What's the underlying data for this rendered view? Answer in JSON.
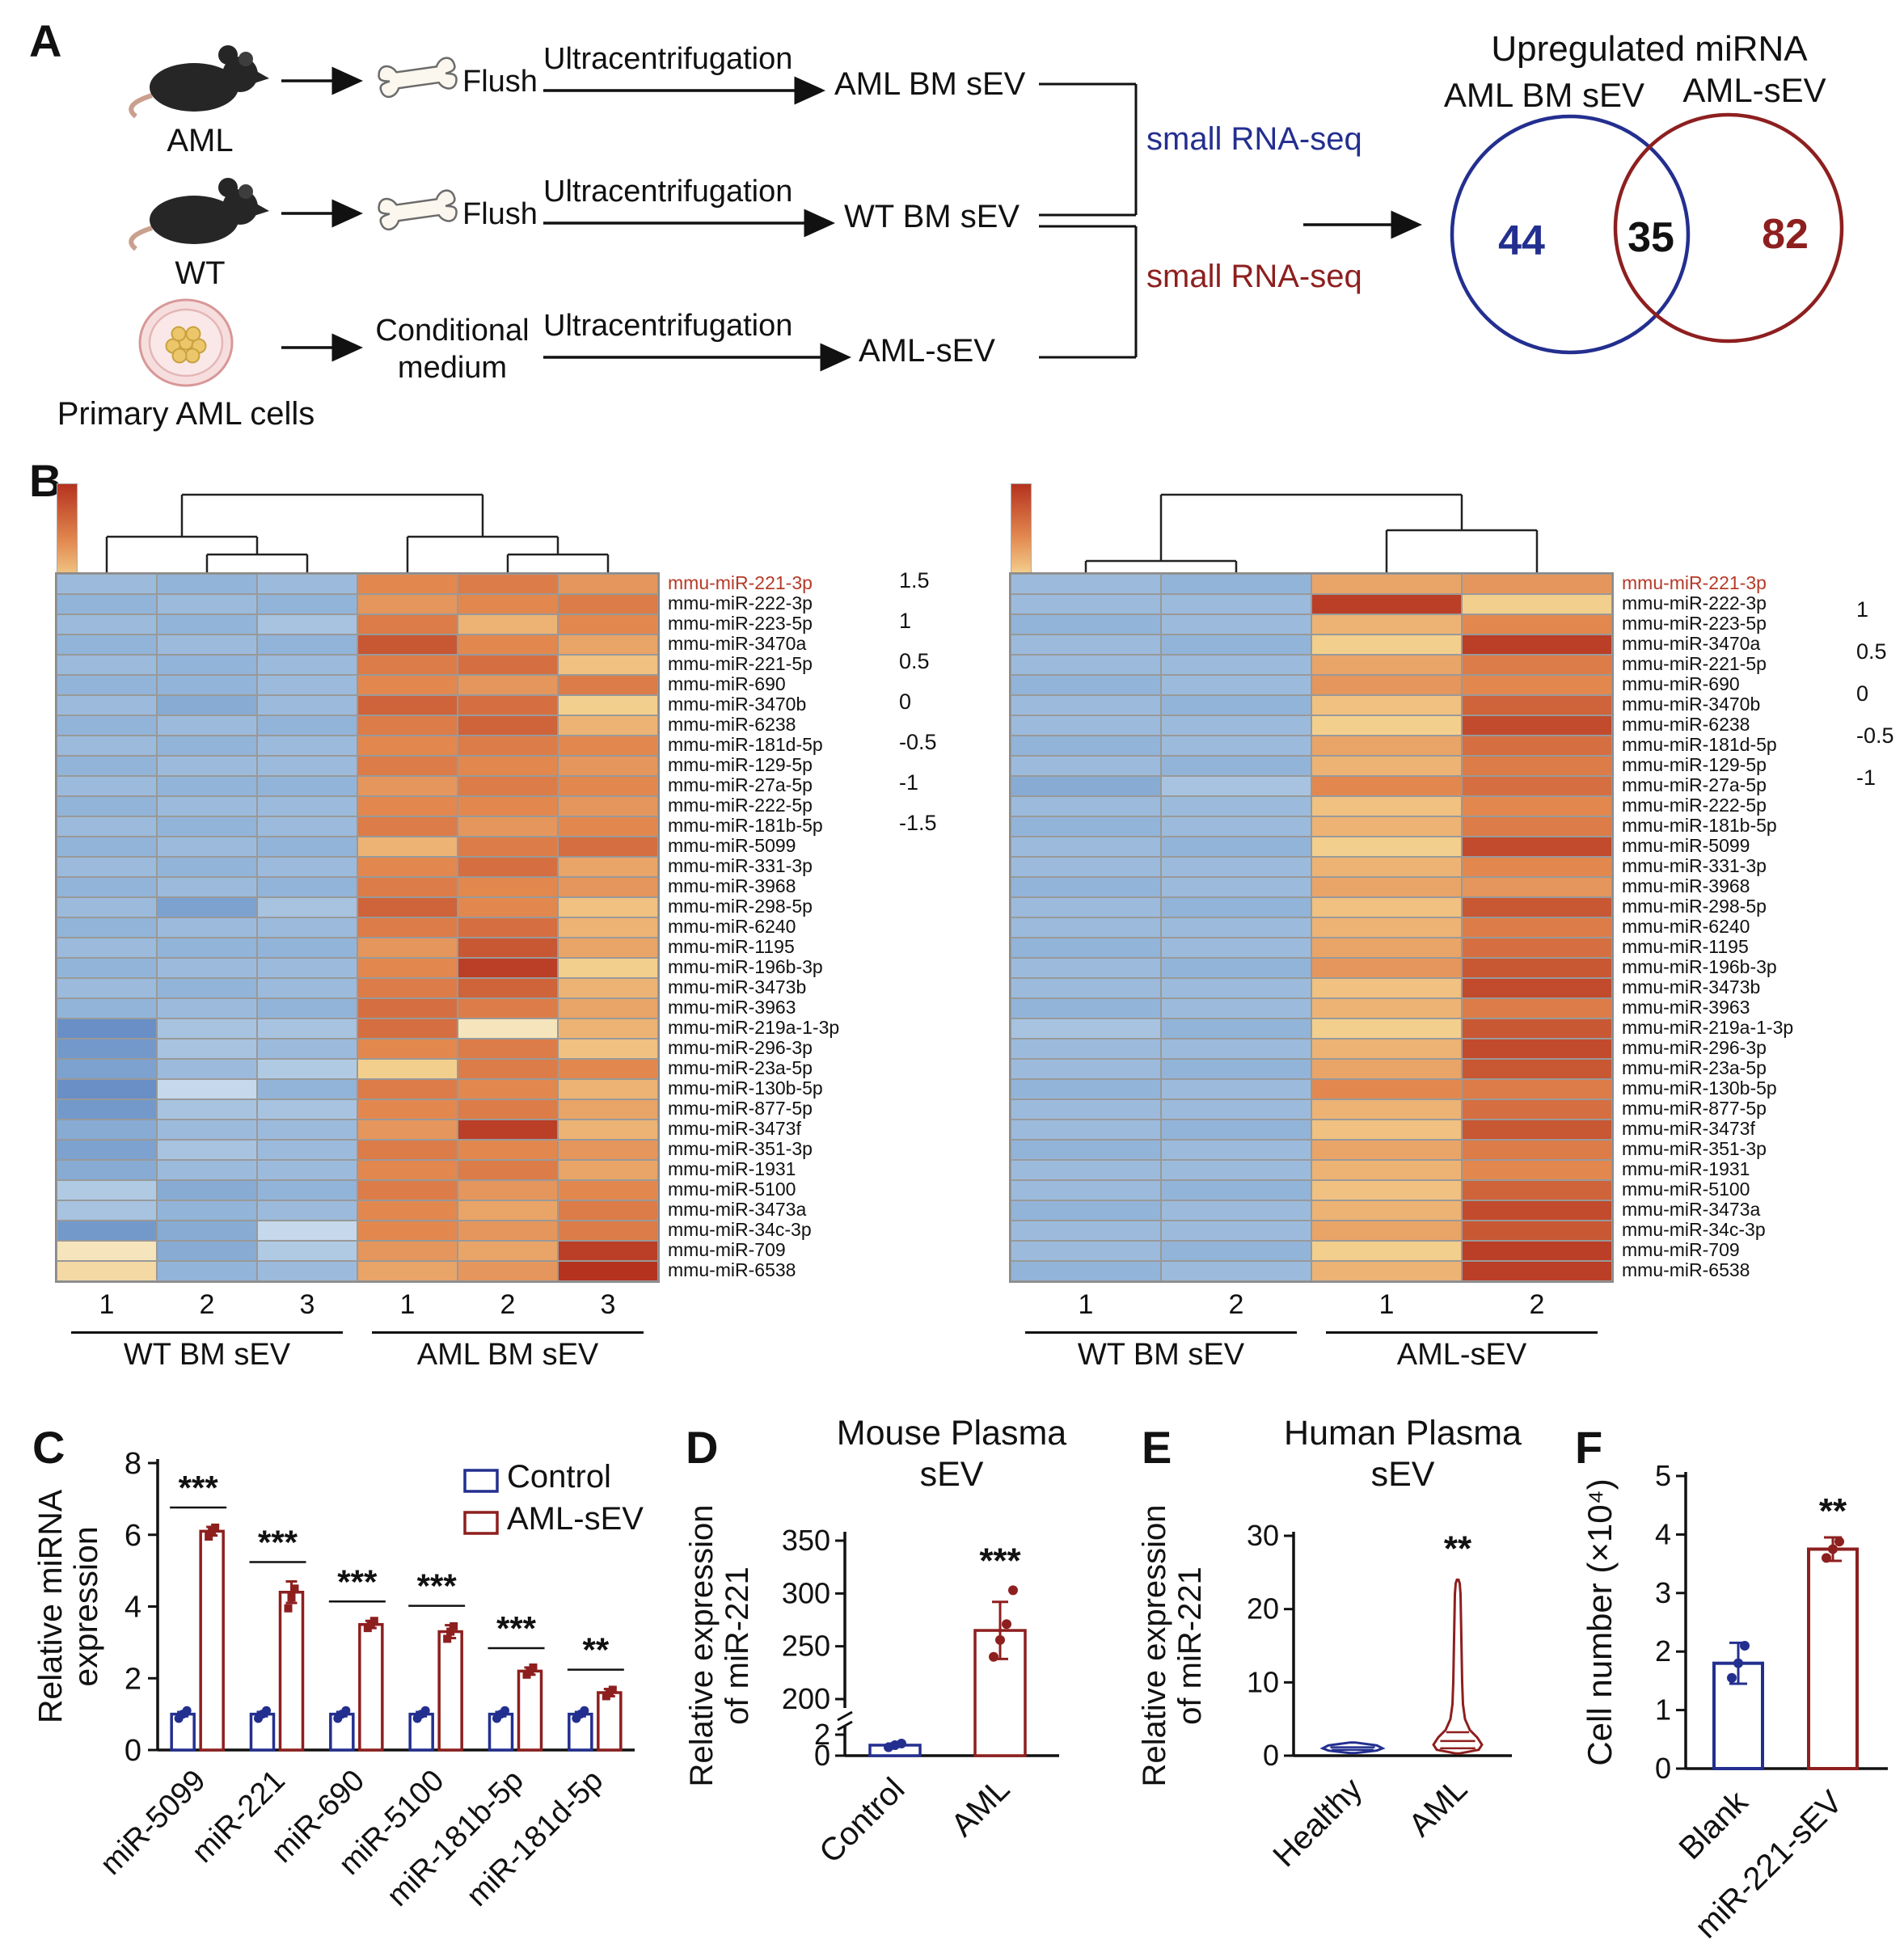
{
  "colors": {
    "blue": "#232f8f",
    "dark_red": "#8e1f1f",
    "heat_label_red": "#b63a28",
    "black": "#111111"
  },
  "panelA": {
    "label": "A",
    "mouse_top_label": "AML",
    "mouse_bottom_label": "WT",
    "dish_label": "Primary AML cells",
    "flush_top": "Flush",
    "flush_bottom": "Flush",
    "ultra_1": "Ultracentrifugation",
    "ultra_2": "Ultracentrifugation",
    "ultra_3": "Ultracentrifugation",
    "conditional_line1": "Conditional",
    "conditional_line2": "medium",
    "product_1": "AML BM sEV",
    "product_2": "WT  BM sEV",
    "product_3": "AML-sEV",
    "rnaseq_blue": "small  RNA-seq",
    "rnaseq_red": "small  RNA-seq",
    "venn": {
      "title": "Upregulated miRNA",
      "left_label": "AML BM sEV",
      "right_label": "AML-sEV",
      "left_value": "44",
      "overlap_value": "35",
      "right_value": "82"
    }
  },
  "panelB": {
    "label": "B"
  },
  "panelC": {
    "label": "C"
  },
  "panelD": {
    "label": "D"
  },
  "panelE": {
    "label": "E"
  },
  "panelF": {
    "label": "F"
  },
  "mirna_rows": [
    "mmu-miR-221-3p",
    "mmu-miR-222-3p",
    "mmu-miR-223-5p",
    "mmu-miR-3470a",
    "mmu-miR-221-5p",
    "mmu-miR-690",
    "mmu-miR-3470b",
    "mmu-miR-6238",
    "mmu-miR-181d-5p",
    "mmu-miR-129-5p",
    "mmu-miR-27a-5p",
    "mmu-miR-222-5p",
    "mmu-miR-181b-5p",
    "mmu-miR-5099",
    "mmu-miR-331-3p",
    "mmu-miR-3968",
    "mmu-miR-298-5p",
    "mmu-miR-6240",
    "mmu-miR-1195",
    "mmu-miR-196b-3p",
    "mmu-miR-3473b",
    "mmu-miR-3963",
    "mmu-miR-219a-1-3p",
    "mmu-miR-296-3p",
    "mmu-miR-23a-5p",
    "mmu-miR-130b-5p",
    "mmu-miR-877-5p",
    "mmu-miR-3473f",
    "mmu-miR-351-3p",
    "mmu-miR-1931",
    "mmu-miR-5100",
    "mmu-miR-3473a",
    "mmu-miR-34c-3p",
    "mmu-miR-709",
    "mmu-miR-6538"
  ],
  "chart_data": [
    {
      "id": "heatmap_left",
      "type": "heatmap",
      "rows_key": "mirna_rows",
      "col_numbers": [
        "1",
        "2",
        "3",
        "1",
        "2",
        "3"
      ],
      "groups": [
        {
          "label": "WT BM sEV",
          "cols": [
            0,
            3
          ]
        },
        {
          "label": "AML BM sEV",
          "cols": [
            3,
            6
          ]
        }
      ],
      "colorscale": {
        "min": -1.5,
        "max": 1.5,
        "ticks": [
          "1.5",
          "1",
          "0.5",
          "0",
          "-0.5",
          "-1",
          "-1.5"
        ]
      },
      "highlight_first_row": true,
      "values": [
        [
          -0.7,
          -0.8,
          -0.7,
          0.8,
          0.9,
          0.7
        ],
        [
          -0.8,
          -0.7,
          -0.8,
          0.7,
          0.8,
          0.9
        ],
        [
          -0.7,
          -0.8,
          -0.6,
          0.9,
          0.5,
          0.8
        ],
        [
          -0.8,
          -0.7,
          -0.8,
          1.2,
          0.8,
          0.6
        ],
        [
          -0.7,
          -0.8,
          -0.7,
          0.9,
          1.0,
          0.4
        ],
        [
          -0.8,
          -0.8,
          -0.7,
          0.8,
          0.7,
          0.9
        ],
        [
          -0.7,
          -0.9,
          -0.7,
          1.1,
          1.0,
          0.3
        ],
        [
          -0.8,
          -0.7,
          -0.8,
          0.9,
          1.1,
          0.5
        ],
        [
          -0.7,
          -0.8,
          -0.7,
          0.8,
          0.9,
          0.8
        ],
        [
          -0.8,
          -0.7,
          -0.7,
          0.9,
          0.8,
          0.7
        ],
        [
          -0.7,
          -0.8,
          -0.8,
          0.7,
          0.9,
          0.8
        ],
        [
          -0.8,
          -0.7,
          -0.7,
          0.8,
          0.8,
          0.7
        ],
        [
          -0.7,
          -0.8,
          -0.7,
          0.9,
          0.7,
          0.8
        ],
        [
          -0.8,
          -0.7,
          -0.8,
          0.5,
          0.9,
          1.0
        ],
        [
          -0.7,
          -0.8,
          -0.7,
          0.8,
          1.0,
          0.6
        ],
        [
          -0.8,
          -0.7,
          -0.8,
          0.9,
          0.8,
          0.7
        ],
        [
          -0.7,
          -1.0,
          -0.6,
          1.1,
          0.8,
          0.4
        ],
        [
          -0.8,
          -0.7,
          -0.7,
          0.9,
          1.0,
          0.5
        ],
        [
          -0.7,
          -0.8,
          -0.8,
          0.7,
          1.2,
          0.6
        ],
        [
          -0.8,
          -0.7,
          -0.7,
          0.8,
          1.4,
          0.3
        ],
        [
          -0.7,
          -0.8,
          -0.7,
          0.9,
          1.1,
          0.5
        ],
        [
          -0.8,
          -0.7,
          -0.8,
          1.0,
          0.9,
          0.6
        ],
        [
          -1.2,
          -0.6,
          -0.6,
          1.0,
          0.1,
          0.5
        ],
        [
          -1.1,
          -0.6,
          -0.7,
          0.8,
          0.9,
          0.4
        ],
        [
          -1.0,
          -0.7,
          -0.5,
          0.3,
          0.9,
          0.8
        ],
        [
          -1.2,
          -0.3,
          -0.8,
          0.9,
          0.8,
          0.5
        ],
        [
          -1.1,
          -0.6,
          -0.6,
          0.8,
          0.9,
          0.6
        ],
        [
          -0.9,
          -0.7,
          -0.7,
          0.7,
          1.4,
          0.5
        ],
        [
          -1.0,
          -0.6,
          -0.7,
          0.9,
          0.8,
          0.7
        ],
        [
          -0.9,
          -0.7,
          -0.7,
          0.8,
          0.9,
          0.6
        ],
        [
          -0.5,
          -0.9,
          -0.8,
          0.9,
          0.7,
          0.8
        ],
        [
          -0.6,
          -0.8,
          -0.7,
          0.8,
          0.6,
          0.9
        ],
        [
          -1.1,
          -0.9,
          -0.3,
          0.8,
          0.7,
          0.9
        ],
        [
          0.1,
          -0.9,
          -0.5,
          0.7,
          0.6,
          1.4
        ],
        [
          0.2,
          -0.8,
          -0.7,
          0.6,
          0.7,
          1.5
        ]
      ]
    },
    {
      "id": "heatmap_right",
      "type": "heatmap",
      "rows_key": "mirna_rows",
      "col_numbers": [
        "1",
        "2",
        "1",
        "2"
      ],
      "groups": [
        {
          "label": "WT BM sEV",
          "cols": [
            0,
            2
          ]
        },
        {
          "label": "AML-sEV",
          "cols": [
            2,
            4
          ]
        }
      ],
      "colorscale": {
        "min": -1,
        "max": 1,
        "ticks": [
          "1",
          "0.5",
          "0",
          "-0.5",
          "-1"
        ]
      },
      "highlight_first_row": true,
      "values": [
        [
          -0.7,
          -0.8,
          0.6,
          0.7
        ],
        [
          -0.7,
          -0.7,
          1.4,
          0.3
        ],
        [
          -0.8,
          -0.7,
          0.5,
          0.8
        ],
        [
          -0.7,
          -0.8,
          0.3,
          1.4
        ],
        [
          -0.7,
          -0.7,
          0.6,
          0.9
        ],
        [
          -0.8,
          -0.7,
          0.7,
          0.8
        ],
        [
          -0.7,
          -0.8,
          0.4,
          1.1
        ],
        [
          -0.7,
          -0.7,
          0.3,
          1.3
        ],
        [
          -0.8,
          -0.7,
          0.6,
          1.0
        ],
        [
          -0.7,
          -0.8,
          0.5,
          0.9
        ],
        [
          -0.9,
          -0.6,
          0.8,
          1.0
        ],
        [
          -0.7,
          -0.7,
          0.4,
          0.8
        ],
        [
          -0.8,
          -0.7,
          0.5,
          0.9
        ],
        [
          -0.7,
          -0.8,
          0.3,
          1.3
        ],
        [
          -0.7,
          -0.7,
          0.5,
          0.8
        ],
        [
          -0.8,
          -0.7,
          0.6,
          0.7
        ],
        [
          -0.7,
          -0.8,
          0.4,
          1.2
        ],
        [
          -0.7,
          -0.7,
          0.5,
          0.9
        ],
        [
          -0.8,
          -0.7,
          0.6,
          1.0
        ],
        [
          -0.7,
          -0.8,
          0.7,
          1.2
        ],
        [
          -0.7,
          -0.7,
          0.4,
          1.3
        ],
        [
          -0.8,
          -0.7,
          0.5,
          0.9
        ],
        [
          -0.6,
          -0.8,
          0.3,
          1.2
        ],
        [
          -0.7,
          -0.7,
          0.5,
          1.3
        ],
        [
          -0.7,
          -0.8,
          0.6,
          1.2
        ],
        [
          -0.8,
          -0.7,
          0.8,
          0.9
        ],
        [
          -0.7,
          -0.7,
          0.5,
          1.0
        ],
        [
          -0.7,
          -0.8,
          0.4,
          1.2
        ],
        [
          -0.8,
          -0.7,
          0.6,
          0.9
        ],
        [
          -0.7,
          -0.7,
          0.5,
          0.8
        ],
        [
          -0.7,
          -0.8,
          0.4,
          1.1
        ],
        [
          -0.8,
          -0.7,
          0.5,
          1.3
        ],
        [
          -0.7,
          -0.7,
          0.6,
          1.2
        ],
        [
          -0.7,
          -0.8,
          0.3,
          1.4
        ],
        [
          -0.8,
          -0.7,
          0.5,
          1.4
        ]
      ]
    },
    {
      "id": "mirna_qpcr",
      "type": "bar",
      "panel": "C",
      "ylabel_lines": [
        "Relative miRNA",
        "expression"
      ],
      "ylim": [
        0,
        8
      ],
      "yticks": [
        "0",
        "2",
        "4",
        "6",
        "8"
      ],
      "categories": [
        "miR-5099",
        "miR-221",
        "miR-690",
        "miR-5100",
        "miR-181b-5p",
        "miR-181d-5p"
      ],
      "series": [
        {
          "name": "Control",
          "color_key": "blue",
          "marker": "circle",
          "values": [
            1,
            1,
            1,
            1,
            1,
            1
          ],
          "errors": [
            0.06,
            0.06,
            0.06,
            0.06,
            0.06,
            0.06
          ],
          "points": [
            0.88,
            1.0,
            1.1
          ]
        },
        {
          "name": "AML-sEV",
          "color_key": "dark_red",
          "marker": "square",
          "values": [
            6.1,
            4.4,
            3.5,
            3.3,
            2.2,
            1.6
          ],
          "errors": [
            0.12,
            0.3,
            0.1,
            0.18,
            0.1,
            0.1
          ],
          "points_per_group": [
            [
              5.95,
              6.1,
              6.2
            ],
            [
              3.95,
              4.25,
              4.5
            ],
            [
              3.4,
              3.5,
              3.6
            ],
            [
              3.1,
              3.3,
              3.45
            ],
            [
              2.1,
              2.2,
              2.3
            ],
            [
              1.5,
              1.6,
              1.68
            ]
          ]
        }
      ],
      "significance": [
        "***",
        "***",
        "***",
        "***",
        "***",
        "**"
      ]
    },
    {
      "id": "mouse_plasma",
      "type": "bar",
      "panel": "D",
      "title_lines": [
        "Mouse Plasma",
        "sEV"
      ],
      "ylabel_lines": [
        "Relative expression",
        "of miR-221"
      ],
      "axis_break": {
        "lower": [
          0,
          2
        ],
        "upper": [
          200,
          350
        ]
      },
      "yticks_lower": [
        "0",
        "2"
      ],
      "yticks_upper": [
        "200",
        "250",
        "300",
        "350"
      ],
      "categories": [
        "Control",
        "AML"
      ],
      "values": [
        1,
        265
      ],
      "errors": [
        0.15,
        27
      ],
      "points": [
        [
          0.8,
          1.0,
          1.15
        ],
        [
          240,
          256,
          271,
          303
        ]
      ],
      "bar_color_keys": [
        "blue",
        "dark_red"
      ],
      "significance": [
        null,
        "***"
      ]
    },
    {
      "id": "human_plasma",
      "type": "violin",
      "panel": "E",
      "title_lines": [
        "Human Plasma",
        "sEV"
      ],
      "ylabel_lines": [
        "Relative expression",
        "of miR-221"
      ],
      "ylim": [
        0,
        30
      ],
      "yticks": [
        "0",
        "10",
        "20",
        "30"
      ],
      "categories": [
        "Healthy",
        "AML"
      ],
      "violins": [
        {
          "color_key": "blue",
          "profile": [
            [
              0.35,
              3
            ],
            [
              0.7,
              30
            ],
            [
              1.0,
              37
            ],
            [
              1.4,
              30
            ],
            [
              1.8,
              3
            ]
          ],
          "lines": [
            0.8,
            1.15
          ]
        },
        {
          "color_key": "dark_red",
          "profile": [
            [
              0.3,
              2
            ],
            [
              0.8,
              26
            ],
            [
              1.5,
              30
            ],
            [
              2.5,
              24
            ],
            [
              3.5,
              15
            ],
            [
              5,
              9
            ],
            [
              7,
              6.5
            ],
            [
              10,
              5.5
            ],
            [
              13,
              5
            ],
            [
              16,
              4.5
            ],
            [
              19,
              4
            ],
            [
              22,
              3.5
            ],
            [
              23.5,
              2.5
            ],
            [
              24,
              1
            ]
          ],
          "lines": [
            1.0,
            2.0,
            3.2
          ]
        }
      ],
      "significance": [
        null,
        "**"
      ]
    },
    {
      "id": "cell_number",
      "type": "bar",
      "panel": "F",
      "ylabel": "Cell number (×10⁴)",
      "ylim": [
        0,
        5
      ],
      "yticks": [
        "0",
        "1",
        "2",
        "3",
        "4",
        "5"
      ],
      "categories": [
        "Blank",
        "miR-221-sEV"
      ],
      "values": [
        1.8,
        3.75
      ],
      "errors": [
        0.35,
        0.2
      ],
      "points": [
        [
          1.55,
          1.8,
          2.1
        ],
        [
          3.6,
          3.75,
          3.88
        ]
      ],
      "bar_color_keys": [
        "blue",
        "dark_red"
      ],
      "significance": [
        null,
        "**"
      ]
    }
  ]
}
